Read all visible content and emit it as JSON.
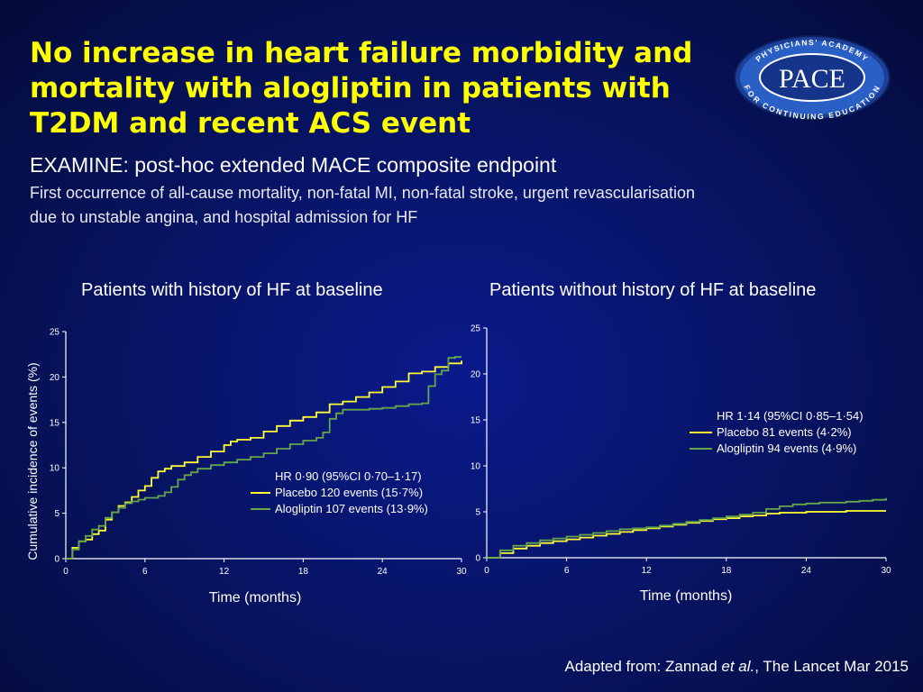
{
  "slide": {
    "title": "No increase in heart failure morbidity and mortality with alogliptin in patients with T2DM and recent ACS event",
    "subtitle": "EXAMINE: post-hoc extended MACE composite endpoint",
    "description": "First occurrence of all-cause mortality, non-fatal MI, non-fatal stroke, urgent revascularisation due to unstable angina, and hospital admission for HF",
    "source_prefix": "Adapted from: Zannad ",
    "source_italic": "et al.",
    "source_suffix": ", The Lancet  Mar 2015"
  },
  "logo": {
    "main_text": "PACE",
    "ring_top": "PHYSICIANS' ACADEMY",
    "ring_bottom": "FOR CONTINUING EDUCATION",
    "colors": {
      "outer": "#1c3f99",
      "ring": "#2a5fc6",
      "inner": "#14358a"
    }
  },
  "colors": {
    "title": "#ffff00",
    "placebo": "#ffff33",
    "alogliptin": "#66a64a",
    "axis": "#ffffff"
  },
  "chart_data": [
    {
      "type": "line",
      "title": "Patients with history of HF at baseline",
      "xlabel": "Time (months)",
      "ylabel": "Cumulative incidence of  events (%)",
      "xlim": [
        0,
        30
      ],
      "ylim": [
        0,
        25
      ],
      "xticks": [
        0,
        6,
        12,
        18,
        24,
        30
      ],
      "yticks": [
        0,
        5,
        10,
        15,
        20,
        25
      ],
      "legend": {
        "header": "HR 0·90 (95%CI 0·70–1·17)",
        "position": "lower-right"
      },
      "series": [
        {
          "name": "Placebo 120 events (15·7%)",
          "color": "#ffff33",
          "points": [
            [
              0,
              0
            ],
            [
              0.5,
              1.2
            ],
            [
              1,
              1.9
            ],
            [
              1.5,
              2.1
            ],
            [
              2,
              2.7
            ],
            [
              2.5,
              3.1
            ],
            [
              3,
              4.3
            ],
            [
              3.5,
              5.1
            ],
            [
              4,
              5.8
            ],
            [
              4.5,
              6.2
            ],
            [
              5,
              6.8
            ],
            [
              5.5,
              7.5
            ],
            [
              6,
              8.0
            ],
            [
              6.5,
              8.9
            ],
            [
              7,
              9.6
            ],
            [
              7.5,
              9.9
            ],
            [
              8,
              10.2
            ],
            [
              9,
              10.6
            ],
            [
              10,
              11.2
            ],
            [
              11,
              11.8
            ],
            [
              12,
              12.5
            ],
            [
              12.5,
              12.9
            ],
            [
              13,
              13.1
            ],
            [
              14,
              13.3
            ],
            [
              15,
              14.0
            ],
            [
              16,
              14.6
            ],
            [
              17,
              15.2
            ],
            [
              18,
              15.6
            ],
            [
              19,
              16.1
            ],
            [
              20,
              17.0
            ],
            [
              21,
              17.3
            ],
            [
              22,
              17.8
            ],
            [
              23,
              18.3
            ],
            [
              24,
              18.9
            ],
            [
              25,
              19.5
            ],
            [
              26,
              20.4
            ],
            [
              27,
              20.6
            ],
            [
              28,
              21.1
            ],
            [
              29,
              21.5
            ],
            [
              30,
              21.8
            ]
          ]
        },
        {
          "name": "Alogliptin 107 events (13·9%)",
          "color": "#66a64a",
          "points": [
            [
              0,
              0
            ],
            [
              0.5,
              1.0
            ],
            [
              1,
              1.9
            ],
            [
              1.5,
              2.5
            ],
            [
              2,
              3.2
            ],
            [
              2.5,
              3.6
            ],
            [
              3,
              4.5
            ],
            [
              3.5,
              5.1
            ],
            [
              4,
              5.6
            ],
            [
              4.5,
              6.1
            ],
            [
              5,
              6.3
            ],
            [
              5.5,
              6.5
            ],
            [
              6,
              6.7
            ],
            [
              7,
              6.9
            ],
            [
              7.5,
              7.3
            ],
            [
              8,
              7.9
            ],
            [
              8.5,
              8.7
            ],
            [
              9,
              9.2
            ],
            [
              9.5,
              9.5
            ],
            [
              10,
              9.9
            ],
            [
              11,
              10.3
            ],
            [
              12,
              10.6
            ],
            [
              13,
              10.9
            ],
            [
              14,
              11.2
            ],
            [
              15,
              11.6
            ],
            [
              16,
              12.1
            ],
            [
              17,
              12.6
            ],
            [
              18,
              13.0
            ],
            [
              19,
              13.3
            ],
            [
              19.5,
              13.9
            ],
            [
              20,
              15.4
            ],
            [
              20.5,
              16.0
            ],
            [
              21,
              16.4
            ],
            [
              22,
              16.4
            ],
            [
              23,
              16.5
            ],
            [
              24,
              16.6
            ],
            [
              25,
              16.8
            ],
            [
              26,
              17.0
            ],
            [
              27,
              17.1
            ],
            [
              27.5,
              19.0
            ],
            [
              28,
              20.3
            ],
            [
              28.5,
              20.7
            ],
            [
              29,
              22.1
            ],
            [
              29.5,
              22.2
            ],
            [
              30,
              22.2
            ]
          ]
        }
      ]
    },
    {
      "type": "line",
      "title": "Patients without history of HF at baseline",
      "xlabel": "Time (months)",
      "ylabel": "",
      "xlim": [
        0,
        30
      ],
      "ylim": [
        0,
        25
      ],
      "xticks": [
        0,
        6,
        12,
        18,
        24,
        30
      ],
      "yticks": [
        0,
        5,
        10,
        15,
        20,
        25
      ],
      "legend": {
        "header": "HR 1·14 (95%CI 0·85–1·54)",
        "position": "center-right"
      },
      "series": [
        {
          "name": "Placebo 81 events (4·2%)",
          "color": "#ffff33",
          "points": [
            [
              0,
              0
            ],
            [
              1,
              0.5
            ],
            [
              2,
              1.0
            ],
            [
              3,
              1.3
            ],
            [
              4,
              1.6
            ],
            [
              5,
              1.8
            ],
            [
              6,
              2.0
            ],
            [
              7,
              2.2
            ],
            [
              8,
              2.4
            ],
            [
              9,
              2.6
            ],
            [
              10,
              2.8
            ],
            [
              11,
              3.0
            ],
            [
              12,
              3.2
            ],
            [
              13,
              3.4
            ],
            [
              14,
              3.6
            ],
            [
              15,
              3.8
            ],
            [
              16,
              4.0
            ],
            [
              17,
              4.2
            ],
            [
              18,
              4.3
            ],
            [
              19,
              4.5
            ],
            [
              20,
              4.6
            ],
            [
              21,
              4.8
            ],
            [
              22,
              4.9
            ],
            [
              23,
              4.9
            ],
            [
              24,
              5.0
            ],
            [
              25,
              5.0
            ],
            [
              26,
              5.0
            ],
            [
              27,
              5.1
            ],
            [
              28,
              5.1
            ],
            [
              29,
              5.1
            ],
            [
              30,
              5.1
            ]
          ]
        },
        {
          "name": "Alogliptin 94 events (4·9%)",
          "color": "#66a64a",
          "points": [
            [
              0,
              0
            ],
            [
              1,
              0.8
            ],
            [
              2,
              1.3
            ],
            [
              3,
              1.6
            ],
            [
              4,
              1.9
            ],
            [
              5,
              2.1
            ],
            [
              6,
              2.3
            ],
            [
              7,
              2.5
            ],
            [
              8,
              2.7
            ],
            [
              9,
              2.9
            ],
            [
              10,
              3.1
            ],
            [
              11,
              3.2
            ],
            [
              12,
              3.3
            ],
            [
              13,
              3.5
            ],
            [
              14,
              3.7
            ],
            [
              15,
              3.9
            ],
            [
              16,
              4.1
            ],
            [
              17,
              4.3
            ],
            [
              18,
              4.5
            ],
            [
              19,
              4.7
            ],
            [
              20,
              4.9
            ],
            [
              21,
              5.3
            ],
            [
              22,
              5.6
            ],
            [
              23,
              5.8
            ],
            [
              24,
              5.9
            ],
            [
              25,
              6.0
            ],
            [
              26,
              6.0
            ],
            [
              27,
              6.1
            ],
            [
              28,
              6.2
            ],
            [
              29,
              6.3
            ],
            [
              30,
              6.5
            ]
          ]
        }
      ]
    }
  ]
}
